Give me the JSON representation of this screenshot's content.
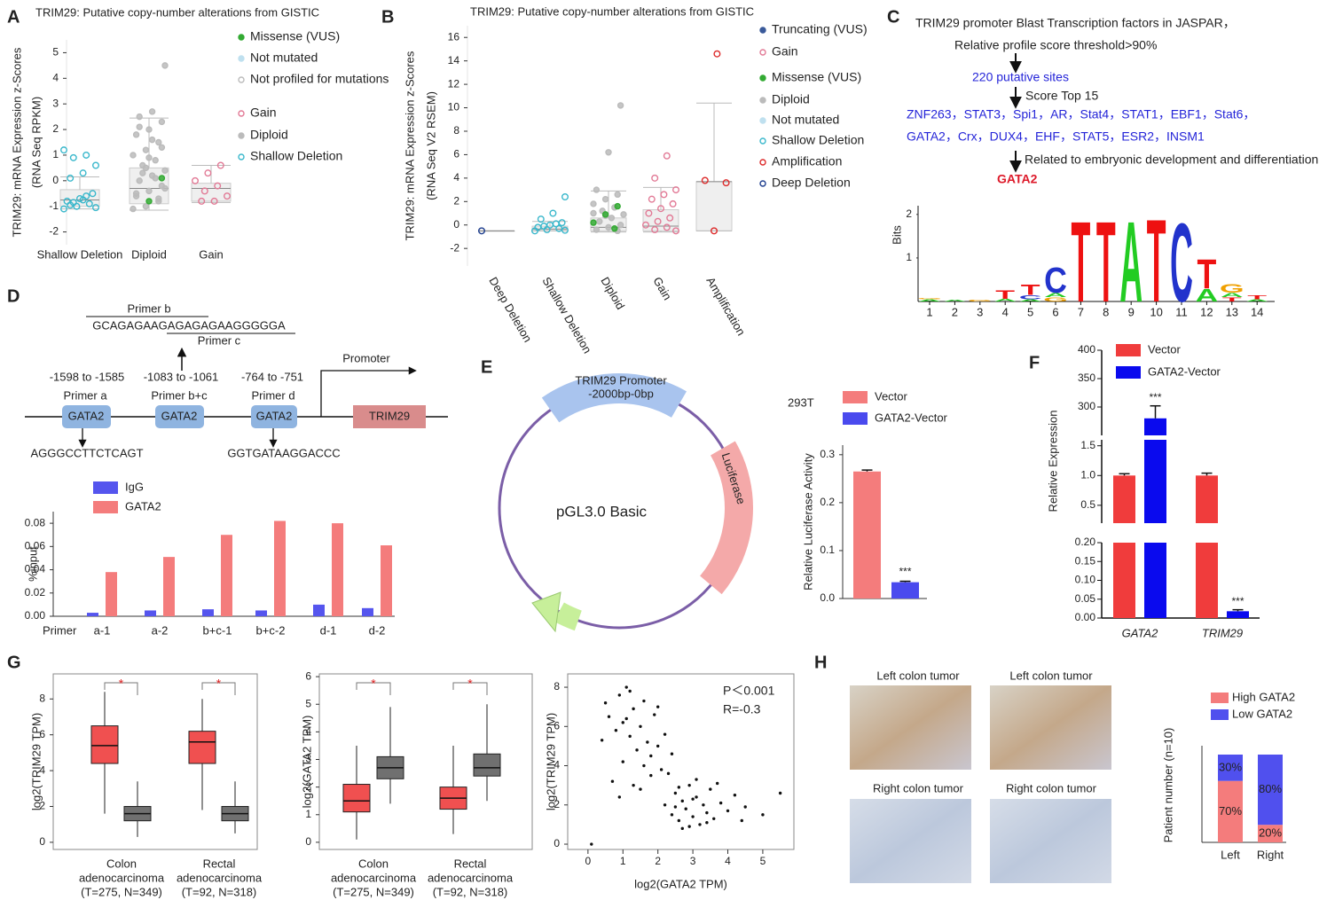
{
  "panel_labels": [
    "A",
    "B",
    "C",
    "D",
    "E",
    "F",
    "G",
    "H"
  ],
  "motif_text": {
    "title": "TRIM29 promoter Blast Transcription factors in JASPAR，",
    "threshold": "Relative profile score threshold>90%",
    "sites": "220 putative sites",
    "top": "Score Top 15",
    "factors": [
      "ZNF263，STAT3，Spi1，AR，Stat4，STAT1，EBF1，Stat6，",
      "GATA2，Crx，DUX4，EHF，STAT5，ESR2，INSM1"
    ],
    "related": "Related to embryonic development and differentiation",
    "result": "GATA2"
  },
  "chip_diagram": {
    "primer_b": "Primer b",
    "sequence": "GCAGAGAAGAGAGAGAAGGGGGA",
    "primer_c": "Primer c",
    "ranges": [
      "-1598 to -1585",
      "-1083 to -1061",
      "-764 to -751"
    ],
    "primers": [
      "Primer a",
      "Primer b+c",
      "Primer d"
    ],
    "site": "GATA2",
    "promoter": "Promoter",
    "gene": "TRIM29",
    "site_sequences": [
      "AGGGCCTTCTCAGT",
      "GGTGATAAGGACCC"
    ]
  },
  "plasmid": {
    "promoter": "TRIM29 Promoter",
    "range": "-2000bp-0bp",
    "reporter": "Luciferase",
    "vector": "pGL3.0 Basic"
  },
  "ihc_images": [
    "Left colon tumor",
    "Left colon tumor",
    "Right colon tumor",
    "Right colon tumor"
  ],
  "chart_data": [
    {
      "type": "strip",
      "title": "TRIM29: Putative copy-number alterations from GISTIC",
      "ylabel": [
        "TRIM29: mRNA Expression z-Scores",
        "(RNA Seq RPKM)"
      ],
      "categories": [
        "Shallow Deletion",
        "Diploid",
        "Gain"
      ],
      "ylim": [
        -2.5,
        5.5
      ],
      "yticks": [
        -2,
        -1,
        0,
        1,
        2,
        3,
        4,
        5
      ],
      "boxes": [
        {
          "low": -1.1,
          "q1": -1.0,
          "median": -0.75,
          "q3": -0.35,
          "high": 0.15
        },
        {
          "low": -1.15,
          "q1": -0.9,
          "median": -0.3,
          "q3": 0.5,
          "high": 2.45
        },
        {
          "low": -0.85,
          "q1": -0.8,
          "median": -0.3,
          "q3": -0.1,
          "high": 0.6
        }
      ],
      "series": [
        {
          "category": 0,
          "color": "#3bb8cc",
          "open": true,
          "values": [
            1.2,
            1.0,
            0.9,
            0.6,
            0.3,
            0.1,
            -0.5,
            -0.7,
            -0.8,
            -0.9,
            -1.0,
            -1.1,
            -0.6,
            -0.85,
            -1.05,
            -0.75,
            -0.95
          ]
        },
        {
          "category": 1,
          "color": "#bbbbbb",
          "open": false,
          "values": [
            4.5,
            2.7,
            2.5,
            2.3,
            2.0,
            1.8,
            1.5,
            1.2,
            1.0,
            0.8,
            0.6,
            0.4,
            0.2,
            0.0,
            -0.2,
            -0.4,
            -0.6,
            -0.8,
            -1.0,
            -1.1,
            0.1,
            0.3,
            -0.3,
            1.6,
            2.1,
            1.3,
            0.9,
            -0.5,
            -0.7,
            0.5
          ]
        },
        {
          "category": 1,
          "color": "#33aa33",
          "open": false,
          "values": [
            0.1,
            -0.8
          ]
        },
        {
          "category": 2,
          "color": "#e27a96",
          "open": true,
          "values": [
            0.6,
            0.3,
            0.0,
            -0.2,
            -0.4,
            -0.6,
            -0.8,
            -0.8
          ]
        }
      ],
      "legend": [
        {
          "name": "Missense (VUS)",
          "color": "#33aa33",
          "open": false
        },
        {
          "name": "Not mutated",
          "color": "#bfe0ef",
          "open": false
        },
        {
          "name": "Not profiled for mutations",
          "color": "#bbbbbb",
          "open": true
        },
        {
          "name": "Gain",
          "color": "#e27a96",
          "open": true
        },
        {
          "name": "Diploid",
          "color": "#bbbbbb",
          "open": false
        },
        {
          "name": "Shallow Deletion",
          "color": "#3bb8cc",
          "open": true
        }
      ]
    },
    {
      "type": "strip",
      "title": "TRIM29: Putative copy-number alterations from GISTIC",
      "ylabel": [
        "TRIM29: mRNA Expression z-Scores",
        "(RNA Seq V2 RSEM)"
      ],
      "categories": [
        "Deep Deletion",
        "Shallow Deletion",
        "Diploid",
        "Gain",
        "Amplification"
      ],
      "ylim": [
        -3.5,
        17
      ],
      "yticks": [
        -2,
        0,
        2,
        4,
        6,
        8,
        10,
        12,
        14,
        16
      ],
      "boxes": [
        {
          "low": -0.5,
          "q1": -0.5,
          "median": -0.5,
          "q3": -0.5,
          "high": -0.5
        },
        {
          "low": -0.5,
          "q1": -0.5,
          "median": -0.35,
          "q3": -0.1,
          "high": 0.3
        },
        {
          "low": -0.6,
          "q1": -0.5,
          "median": -0.2,
          "q3": 0.6,
          "high": 2.9
        },
        {
          "low": -0.6,
          "q1": -0.5,
          "median": -0.1,
          "q3": 1.3,
          "high": 3.2
        },
        {
          "low": -0.5,
          "q1": -0.5,
          "median": 3.7,
          "q3": 3.7,
          "high": 10.4
        }
      ],
      "series": [
        {
          "category": 0,
          "color": "#1f3f8f",
          "open": true,
          "values": [
            -0.5
          ]
        },
        {
          "category": 1,
          "color": "#3bb8cc",
          "open": true,
          "values": [
            2.4,
            1.0,
            0.5,
            0.2,
            0.0,
            -0.2,
            -0.3,
            -0.4,
            -0.5,
            0.1,
            -0.1,
            -0.45
          ]
        },
        {
          "category": 2,
          "color": "#bbbbbb",
          "open": false,
          "values": [
            10.2,
            6.2,
            3.0,
            2.6,
            2.2,
            1.8,
            1.5,
            1.2,
            0.9,
            0.6,
            0.3,
            0.0,
            -0.2,
            -0.4,
            -0.5,
            0.8,
            1.0
          ]
        },
        {
          "category": 2,
          "color": "#33aa33",
          "open": false,
          "values": [
            1.6,
            0.9,
            0.2,
            -0.3
          ]
        },
        {
          "category": 3,
          "color": "#e27a96",
          "open": true,
          "values": [
            5.9,
            4.0,
            3.0,
            2.6,
            2.2,
            1.8,
            1.4,
            1.0,
            0.6,
            0.3,
            0.0,
            -0.2,
            -0.4,
            -0.5
          ]
        },
        {
          "category": 4,
          "color": "#dd2a2a",
          "open": true,
          "values": [
            14.6,
            3.8,
            3.6,
            -0.5
          ]
        }
      ],
      "legend": [
        {
          "name": "Truncating (VUS)",
          "color": "#3a5a9a",
          "open": false
        },
        {
          "name": "Gain",
          "color": "#e27a96",
          "open": true
        },
        {
          "name": "Missense (VUS)",
          "color": "#33aa33",
          "open": false
        },
        {
          "name": "Diploid",
          "color": "#bbbbbb",
          "open": false
        },
        {
          "name": "Not mutated",
          "color": "#bfe0ef",
          "open": false
        },
        {
          "name": "Shallow Deletion",
          "color": "#3bb8cc",
          "open": true
        },
        {
          "name": "Amplification",
          "color": "#dd2a2a",
          "open": true
        },
        {
          "name": "Deep Deletion",
          "color": "#1f3f8f",
          "open": true
        }
      ]
    },
    {
      "type": "logo",
      "ylabel": "Bits",
      "ylim": [
        0,
        2.2
      ],
      "yticks": [
        1,
        2
      ],
      "xticks": [
        1,
        2,
        3,
        4,
        5,
        6,
        7,
        8,
        9,
        10,
        11,
        12,
        13,
        14
      ],
      "letter_colors": {
        "A": "#22cc22",
        "C": "#2233cc",
        "G": "#f0a000",
        "T": "#ee1111"
      },
      "stacks": [
        [
          [
            "A",
            0.05
          ],
          [
            "G",
            0.03
          ]
        ],
        [
          [
            "A",
            0.04
          ]
        ],
        [
          [
            "G",
            0.04
          ]
        ],
        [
          [
            "A",
            0.06
          ],
          [
            "T",
            0.2
          ]
        ],
        [
          [
            "A",
            0.05
          ],
          [
            "C",
            0.1
          ],
          [
            "T",
            0.25
          ]
        ],
        [
          [
            "G",
            0.1
          ],
          [
            "A",
            0.1
          ],
          [
            "C",
            0.6
          ]
        ],
        [
          [
            "T",
            1.9
          ]
        ],
        [
          [
            "T",
            1.9
          ]
        ],
        [
          [
            "A",
            1.9
          ]
        ],
        [
          [
            "T",
            1.95
          ]
        ],
        [
          [
            "C",
            1.85
          ]
        ],
        [
          [
            "A",
            0.3
          ],
          [
            "T",
            0.7
          ]
        ],
        [
          [
            "T",
            0.1
          ],
          [
            "A",
            0.1
          ],
          [
            "G",
            0.2
          ]
        ],
        [
          [
            "A",
            0.05
          ],
          [
            "T",
            0.1
          ]
        ]
      ]
    },
    {
      "type": "bar",
      "ylabel": "%input",
      "xlabel": "Primer",
      "categories": [
        "a-1",
        "a-2",
        "b+c-1",
        "b+c-2",
        "d-1",
        "d-2"
      ],
      "ylim": [
        0,
        0.09
      ],
      "yticks": [
        {
          "value": 0,
          "label": "0.00"
        },
        {
          "value": 0.02,
          "label": "0.02"
        },
        {
          "value": 0.04,
          "label": "0.04"
        },
        {
          "value": 0.06,
          "label": "0.06"
        },
        {
          "value": 0.08,
          "label": "0.08"
        }
      ],
      "series": [
        {
          "name": "IgG",
          "color": "#5555ee",
          "values": [
            0.003,
            0.005,
            0.006,
            0.005,
            0.01,
            0.007
          ]
        },
        {
          "name": "GATA2",
          "color": "#f47c7c",
          "values": [
            0.038,
            0.051,
            0.07,
            0.082,
            0.08,
            0.061
          ]
        }
      ]
    },
    {
      "type": "bar",
      "ylabel": "Relative Luciferase Activity",
      "group_label": "293T",
      "categories": [
        null
      ],
      "ylim": [
        0,
        0.32
      ],
      "yticks": [
        {
          "value": 0,
          "label": "0.0"
        },
        0.1,
        0.2,
        0.3
      ],
      "series": [
        {
          "name": "Vector",
          "color": "#f47c7c",
          "values": [
            0.265
          ],
          "errors": [
            0.003
          ]
        },
        {
          "name": "GATA2-Vector",
          "color": "#4a4aee",
          "values": [
            0.034
          ],
          "errors": [
            0.002
          ]
        }
      ],
      "annotations": [
        {
          "text": "***",
          "series": 1,
          "category": 0
        }
      ]
    },
    {
      "type": "broken-bar",
      "ylabel": "Relative Expression",
      "categories": [
        "GATA2",
        "TRIM29"
      ],
      "segments": [
        {
          "ylim": [
            0,
            0.2
          ],
          "yticks": [
            {
              "value": 0,
              "label": "0.00"
            },
            {
              "value": 0.05,
              "label": "0.05"
            },
            {
              "value": 0.1,
              "label": "0.10"
            },
            {
              "value": 0.15,
              "label": "0.15"
            },
            {
              "value": 0.2,
              "label": "0.20"
            }
          ]
        },
        {
          "ylim": [
            0.2,
            1.6
          ],
          "yticks": [
            0.5,
            {
              "value": 1,
              "label": "1.0"
            },
            1.5
          ]
        },
        {
          "ylim": [
            250,
            400
          ],
          "yticks": [
            300,
            350,
            400
          ]
        }
      ],
      "series": [
        {
          "name": "Vector",
          "color": "#f03c3c",
          "values": [
            1.0,
            1.0
          ],
          "errors": [
            0.03,
            0.04
          ]
        },
        {
          "name": "GATA2-Vector",
          "color": "#0a0aee",
          "values": [
            280,
            0.018
          ],
          "errors": [
            22,
            0.004
          ]
        }
      ],
      "annotations": [
        {
          "text": "***",
          "series": 1,
          "category": 0
        },
        {
          "text": "***",
          "series": 1,
          "category": 1
        }
      ]
    },
    {
      "type": "box",
      "ylabel": "log2(TRIM29 TPM)",
      "categories": [
        [
          "Colon",
          "adenocarcinoma",
          "(T=275, N=349)"
        ],
        [
          "Rectal",
          "adenocarcinoma",
          "(T=92, N=318)"
        ]
      ],
      "ylim": [
        -0.4,
        9.4
      ],
      "yticks": [
        0,
        2,
        4,
        6,
        8
      ],
      "significance": [
        "*",
        "*"
      ],
      "series": [
        {
          "color": "#f05050",
          "boxes": [
            {
              "low": 1.6,
              "q1": 4.4,
              "median": 5.4,
              "q3": 6.5,
              "high": 8.4
            },
            {
              "low": 1.8,
              "q1": 4.4,
              "median": 5.6,
              "q3": 6.2,
              "high": 8.0
            }
          ]
        },
        {
          "color": "#707070",
          "boxes": [
            {
              "low": 0.3,
              "q1": 1.2,
              "median": 1.6,
              "q3": 2.0,
              "high": 3.4
            },
            {
              "low": 0.5,
              "q1": 1.2,
              "median": 1.6,
              "q3": 2.0,
              "high": 3.4
            }
          ]
        }
      ]
    },
    {
      "type": "box",
      "ylabel": "log2(GATA2 TPM)",
      "categories": [
        [
          "Colon",
          "adenocarcinoma",
          "(T=275, N=349)"
        ],
        [
          "Rectal",
          "adenocarcinoma",
          "(T=92, N=318)"
        ]
      ],
      "ylim": [
        -0.26,
        6.1
      ],
      "yticks": [
        0,
        1,
        2,
        3,
        4,
        5,
        6
      ],
      "significance": [
        "*",
        "*"
      ],
      "series": [
        {
          "color": "#f05050",
          "boxes": [
            {
              "low": 0.1,
              "q1": 1.1,
              "median": 1.5,
              "q3": 2.1,
              "high": 3.5
            },
            {
              "low": 0.3,
              "q1": 1.2,
              "median": 1.6,
              "q3": 2.0,
              "high": 3.5
            }
          ]
        },
        {
          "color": "#707070",
          "boxes": [
            {
              "low": 1.4,
              "q1": 2.3,
              "median": 2.7,
              "q3": 3.1,
              "high": 4.9
            },
            {
              "low": 1.5,
              "q1": 2.4,
              "median": 2.7,
              "q3": 3.2,
              "high": 5.0
            }
          ]
        }
      ]
    },
    {
      "type": "scatter",
      "xlabel": "log2(GATA2 TPM)",
      "ylabel": "log2(TRIM29 TPM)",
      "annotations": [
        "P＜0.001",
        "R=-0.3"
      ],
      "xlim": [
        -0.58,
        5.89
      ],
      "ylim": [
        -0.27,
        8.68
      ],
      "xticks": [
        0,
        1,
        2,
        3,
        4,
        5
      ],
      "yticks": [
        0,
        2,
        4,
        6,
        8
      ],
      "color": "#111111",
      "x": [
        0.1,
        0.5,
        0.6,
        0.8,
        0.9,
        1.0,
        1.1,
        1.2,
        1.3,
        1.4,
        1.5,
        1.6,
        1.7,
        1.8,
        1.9,
        2.0,
        2.1,
        0.7,
        1.0,
        1.2,
        1.5,
        1.8,
        2.2,
        0.9,
        1.3,
        1.6,
        1.1,
        2.0,
        2.4,
        0.4,
        2.2,
        2.4,
        2.5,
        2.6,
        2.7,
        2.8,
        2.9,
        3.0,
        3.1,
        3.2,
        3.3,
        3.4,
        3.5,
        3.6,
        3.8,
        4.0,
        4.2,
        4.5,
        5.0,
        5.5,
        2.3,
        2.6,
        2.9,
        3.1,
        3.4,
        2.7,
        3.0,
        2.5,
        3.7,
        4.4
      ],
      "values": [
        0,
        7.2,
        6.5,
        5.8,
        7.6,
        6.2,
        8.0,
        5.5,
        6.9,
        4.8,
        6.0,
        7.3,
        5.2,
        4.5,
        6.6,
        5.0,
        3.8,
        3.2,
        4.2,
        7.8,
        2.8,
        3.5,
        5.6,
        2.4,
        3.0,
        4.0,
        6.4,
        7.0,
        4.6,
        5.3,
        2.0,
        1.5,
        2.6,
        1.2,
        2.2,
        1.8,
        3.0,
        1.4,
        2.4,
        1.0,
        2.0,
        1.6,
        2.8,
        1.3,
        2.1,
        1.7,
        2.5,
        1.9,
        1.5,
        2.6,
        3.6,
        2.9,
        0.9,
        3.3,
        1.1,
        0.8,
        2.3,
        1.9,
        3.1,
        1.2
      ]
    },
    {
      "type": "stacked-bar",
      "ylabel": "Patient number (n=10)",
      "categories": [
        "Left",
        "Right"
      ],
      "ylim": [
        0,
        10
      ],
      "series": [
        {
          "name": "High GATA2",
          "color": "#f47c7c",
          "values": [
            7,
            2
          ],
          "value_labels": [
            "70%",
            "20%"
          ]
        },
        {
          "name": "Low GATA2",
          "color": "#5050ee",
          "values": [
            3,
            8
          ],
          "value_labels": [
            "30%",
            "80%"
          ]
        }
      ]
    }
  ]
}
